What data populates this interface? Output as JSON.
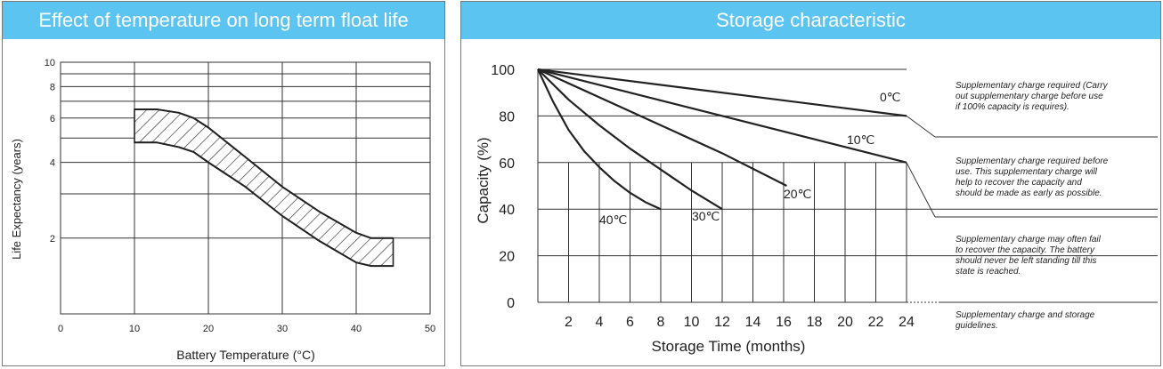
{
  "left_chart": {
    "title": "Effect of temperature on long term float life",
    "xlabel": "Battery Temperature (°C)",
    "ylabel": "Life Expectancy (years)"
  },
  "right_chart": {
    "title": "Storage characteristic",
    "xlabel": "Storage Time (months)",
    "ylabel": "Capacity (%)",
    "notes": [
      "Supplementary charge required (Carry out supplementary charge before use if 100% capacity is requires).",
      "Supplementary charge required before use. This supplementary charge will help to recover the capacity and should be made  as early as possible.",
      "Supplementary charge may often fail to recover the capacity. The battery should never be left standing till this state is reached.",
      "Supplementary charge and storage guidelines."
    ]
  },
  "chart_data": [
    {
      "type": "area",
      "title": "Effect of temperature on long term float life",
      "xlabel": "Battery Temperature (°C)",
      "ylabel": "Life Expectancy (years)",
      "xlim": [
        0,
        50
      ],
      "ylim": [
        1,
        10
      ],
      "y_scale": "log",
      "x_ticks": [
        0,
        10,
        20,
        30,
        40,
        50
      ],
      "y_ticks": [
        2,
        4,
        6,
        8,
        10
      ],
      "grid": true,
      "band_fill": "diagonal hatch",
      "series": [
        {
          "x": [
            10,
            13,
            16,
            18,
            20,
            25,
            30,
            35,
            40,
            42,
            45
          ],
          "values": [
            6.5,
            6.5,
            6.3,
            6.0,
            5.5,
            4.2,
            3.2,
            2.55,
            2.1,
            2.0,
            2.0
          ]
        },
        {
          "x": [
            10,
            13,
            16,
            18,
            20,
            25,
            30,
            35,
            40,
            42,
            45
          ],
          "values": [
            4.8,
            4.8,
            4.6,
            4.4,
            4.0,
            3.2,
            2.45,
            1.95,
            1.6,
            1.55,
            1.55
          ]
        }
      ]
    },
    {
      "type": "line",
      "title": "Storage characteristic",
      "xlabel": "Storage Time (months)",
      "ylabel": "Capacity (%)",
      "xlim": [
        0,
        24
      ],
      "ylim": [
        0,
        100
      ],
      "x_ticks": [
        2,
        4,
        6,
        8,
        10,
        12,
        14,
        16,
        18,
        20,
        22,
        24
      ],
      "y_ticks": [
        0,
        20,
        40,
        60,
        80,
        100
      ],
      "grid": true,
      "series": [
        {
          "name": "0℃",
          "x": [
            0,
            24
          ],
          "values": [
            100,
            80
          ]
        },
        {
          "name": "10℃",
          "x": [
            0,
            24
          ],
          "values": [
            100,
            60
          ]
        },
        {
          "name": "20℃",
          "x": [
            0,
            6,
            12,
            16.2
          ],
          "values": [
            100,
            82,
            64,
            50
          ]
        },
        {
          "name": "30℃",
          "x": [
            0,
            2,
            4,
            6,
            8,
            10,
            12
          ],
          "values": [
            100,
            87,
            76,
            66,
            57,
            48,
            40
          ]
        },
        {
          "name": "40℃",
          "x": [
            0,
            1,
            2,
            3,
            4,
            5,
            6,
            7,
            8
          ],
          "values": [
            100,
            86,
            74,
            65,
            58,
            52,
            47,
            43,
            40
          ]
        }
      ]
    }
  ]
}
